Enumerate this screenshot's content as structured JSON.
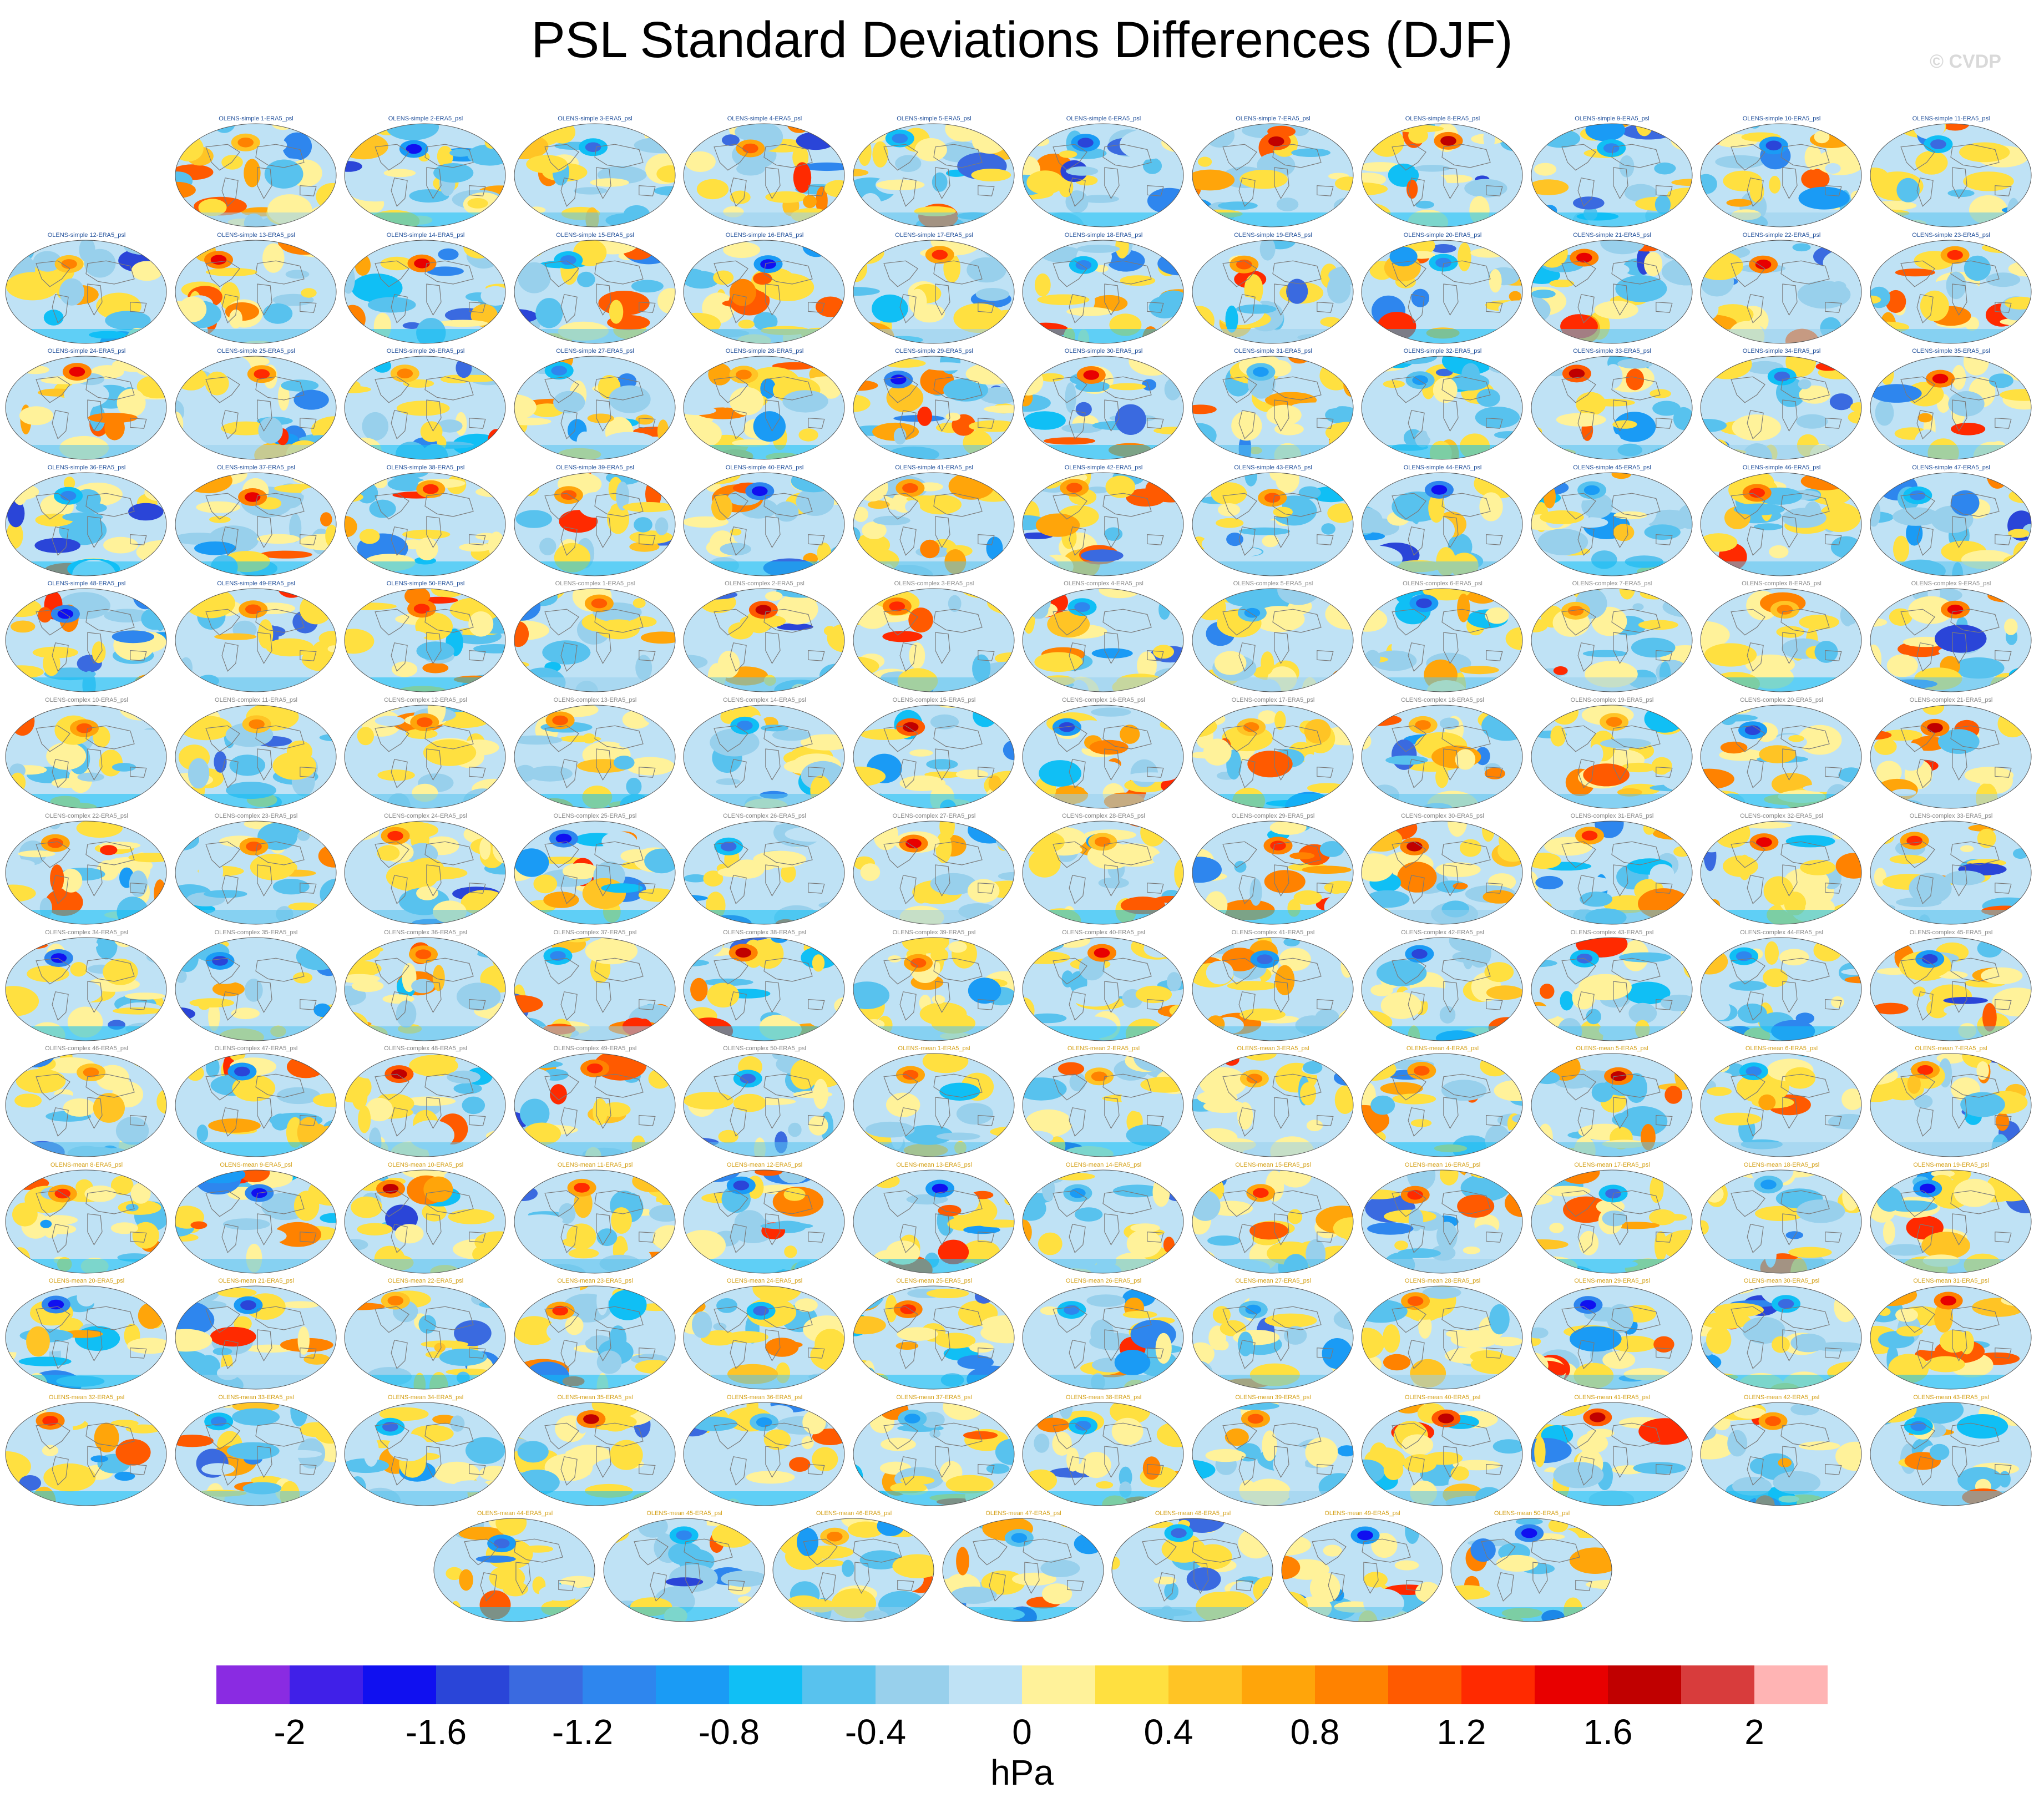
{
  "title": "PSL Standard Deviations Differences (DJF)",
  "watermark": "© CVDP",
  "chart_data": {
    "type": "heatmap",
    "title": "PSL Standard Deviations Differences (DJF)",
    "subplot_type": "global map panel (Robinson-like projection)",
    "panel_label_suffix": "-ERA5_psl",
    "panels": [
      "OLENS-simple 1",
      "OLENS-simple 2",
      "OLENS-simple 3",
      "OLENS-simple 4",
      "OLENS-simple 5",
      "OLENS-simple 6",
      "OLENS-simple 7",
      "OLENS-simple 8",
      "OLENS-simple 9",
      "OLENS-simple 10",
      "OLENS-simple 11",
      "OLENS-simple 12",
      "OLENS-simple 13",
      "OLENS-simple 14",
      "OLENS-simple 15",
      "OLENS-simple 16",
      "OLENS-simple 17",
      "OLENS-simple 18",
      "OLENS-simple 19",
      "OLENS-simple 20",
      "OLENS-simple 21",
      "OLENS-simple 22",
      "OLENS-simple 23",
      "OLENS-simple 24",
      "OLENS-simple 25",
      "OLENS-simple 26",
      "OLENS-simple 27",
      "OLENS-simple 28",
      "OLENS-simple 29",
      "OLENS-simple 30",
      "OLENS-simple 31",
      "OLENS-simple 32",
      "OLENS-simple 33",
      "OLENS-simple 34",
      "OLENS-simple 35",
      "OLENS-simple 36",
      "OLENS-simple 37",
      "OLENS-simple 38",
      "OLENS-simple 39",
      "OLENS-simple 40",
      "OLENS-simple 41",
      "OLENS-simple 42",
      "OLENS-simple 43",
      "OLENS-simple 44",
      "OLENS-simple 45",
      "OLENS-simple 46",
      "OLENS-simple 47",
      "OLENS-simple 48",
      "OLENS-simple 49",
      "OLENS-simple 50",
      "OLENS-complex 1",
      "OLENS-complex 2",
      "OLENS-complex 3",
      "OLENS-complex 4",
      "OLENS-complex 5",
      "OLENS-complex 6",
      "OLENS-complex 7",
      "OLENS-complex 8",
      "OLENS-complex 9",
      "OLENS-complex 10",
      "OLENS-complex 11",
      "OLENS-complex 12",
      "OLENS-complex 13",
      "OLENS-complex 14",
      "OLENS-complex 15",
      "OLENS-complex 16",
      "OLENS-complex 17",
      "OLENS-complex 18",
      "OLENS-complex 19",
      "OLENS-complex 20",
      "OLENS-complex 21",
      "OLENS-complex 22",
      "OLENS-complex 23",
      "OLENS-complex 24",
      "OLENS-complex 25",
      "OLENS-complex 26",
      "OLENS-complex 27",
      "OLENS-complex 28",
      "OLENS-complex 29",
      "OLENS-complex 30",
      "OLENS-complex 31",
      "OLENS-complex 32",
      "OLENS-complex 33",
      "OLENS-complex 34",
      "OLENS-complex 35",
      "OLENS-complex 36",
      "OLENS-complex 37",
      "OLENS-complex 38",
      "OLENS-complex 39",
      "OLENS-complex 40",
      "OLENS-complex 41",
      "OLENS-complex 42",
      "OLENS-complex 43",
      "OLENS-complex 44",
      "OLENS-complex 45",
      "OLENS-complex 46",
      "OLENS-complex 47",
      "OLENS-complex 48",
      "OLENS-complex 49",
      "OLENS-complex 50",
      "OLENS-mean 1",
      "OLENS-mean 2",
      "OLENS-mean 3",
      "OLENS-mean 4",
      "OLENS-mean 5",
      "OLENS-mean 6",
      "OLENS-mean 7",
      "OLENS-mean 8",
      "OLENS-mean 9",
      "OLENS-mean 10",
      "OLENS-mean 11",
      "OLENS-mean 12",
      "OLENS-mean 13",
      "OLENS-mean 14",
      "OLENS-mean 15",
      "OLENS-mean 16",
      "OLENS-mean 17",
      "OLENS-mean 18",
      "OLENS-mean 19",
      "OLENS-mean 20",
      "OLENS-mean 21",
      "OLENS-mean 22",
      "OLENS-mean 23",
      "OLENS-mean 24",
      "OLENS-mean 25",
      "OLENS-mean 26",
      "OLENS-mean 27",
      "OLENS-mean 28",
      "OLENS-mean 29",
      "OLENS-mean 30",
      "OLENS-mean 31",
      "OLENS-mean 32",
      "OLENS-mean 33",
      "OLENS-mean 34",
      "OLENS-mean 35",
      "OLENS-mean 36",
      "OLENS-mean 37",
      "OLENS-mean 38",
      "OLENS-mean 39",
      "OLENS-mean 40",
      "OLENS-mean 41",
      "OLENS-mean 42",
      "OLENS-mean 43",
      "OLENS-mean 44",
      "OLENS-mean 45",
      "OLENS-mean 46",
      "OLENS-mean 47",
      "OLENS-mean 48",
      "OLENS-mean 49",
      "OLENS-mean 50"
    ],
    "colorbar": {
      "units": "hPa",
      "range": [
        -2.2,
        2.2
      ],
      "step": 0.2,
      "tick_labels": [
        "-2",
        "-1.6",
        "-1.2",
        "-0.8",
        "-0.4",
        "0",
        "0.4",
        "0.8",
        "1.2",
        "1.6",
        "2"
      ],
      "tick_values": [
        -2,
        -1.6,
        -1.2,
        -0.8,
        -0.4,
        0,
        0.4,
        0.8,
        1.2,
        1.6,
        2
      ],
      "colors": [
        "#8a2be2",
        "#4020e8",
        "#1010f0",
        "#2a45d8",
        "#3a6ae0",
        "#2e86ee",
        "#1a9bf5",
        "#10bff5",
        "#58c2ee",
        "#98d0ec",
        "#bfe2f5",
        "#fff29a",
        "#ffe040",
        "#ffc425",
        "#ffa50a",
        "#ff8200",
        "#ff5a00",
        "#ff2a00",
        "#e80000",
        "#c00000",
        "#d83c3c",
        "#ffb4b4"
      ]
    }
  }
}
